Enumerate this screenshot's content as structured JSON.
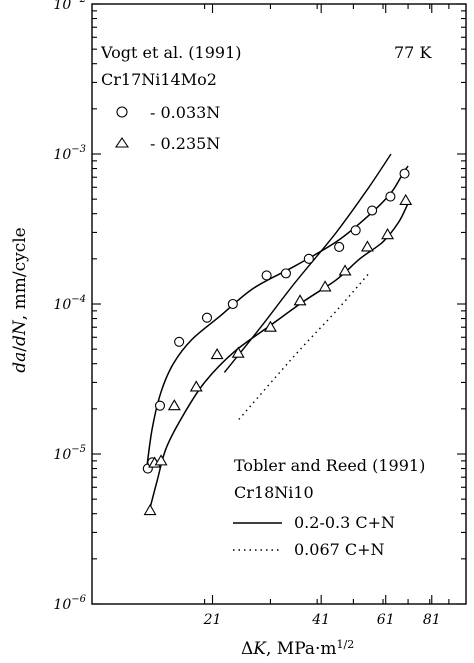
{
  "chart_data": {
    "type": "scatter",
    "title": "",
    "xlabel_parts": [
      "Δ",
      "K",
      ", MPa·m",
      "1/2"
    ],
    "ylabel_parts": [
      "da",
      "/",
      "dN",
      ", mm/cycle"
    ],
    "x_scale": "log",
    "y_scale": "log",
    "xlim": [
      10,
      100
    ],
    "ylim": [
      1e-06,
      0.01
    ],
    "grid": false,
    "x_ticks": [
      {
        "value": 21,
        "label": "21"
      },
      {
        "value": 41,
        "label": "41"
      },
      {
        "value": 61,
        "label": "61"
      },
      {
        "value": 81,
        "label": "81"
      }
    ],
    "y_ticks": [
      {
        "value": 1e-06,
        "base": "10",
        "exp": "−6"
      },
      {
        "value": 1e-05,
        "base": "10",
        "exp": "−5"
      },
      {
        "value": 0.0001,
        "base": "10",
        "exp": "−4"
      },
      {
        "value": 0.001,
        "base": "10",
        "exp": "−3"
      },
      {
        "value": 0.01,
        "base": "10",
        "exp": "−2"
      }
    ],
    "annotations": {
      "source_top": "Vogt et al. (1991)",
      "temperature": "77 K",
      "material_top": "Cr17Ni14Mo2",
      "source_bottom": "Tobler and Reed (1991)",
      "material_bottom": "Cr18Ni10"
    },
    "series": [
      {
        "name": "- 0.033N",
        "marker": "circle",
        "points": [
          [
            14.1,
            8e-06
          ],
          [
            14.5,
            8.8e-06
          ],
          [
            15.2,
            2.1e-05
          ],
          [
            17.1,
            5.6e-05
          ],
          [
            20.3,
            8.1e-05
          ],
          [
            23.8,
            0.0001
          ],
          [
            29.3,
            0.000155
          ],
          [
            33.0,
            0.00016
          ],
          [
            38.0,
            0.0002
          ],
          [
            45.8,
            0.00024
          ],
          [
            50.7,
            0.00031
          ],
          [
            56.1,
            0.00042
          ],
          [
            62.8,
            0.00052
          ],
          [
            68.5,
            0.00074
          ]
        ],
        "fit": [
          [
            14.0,
            8e-06
          ],
          [
            14.5,
            1.5e-05
          ],
          [
            15.3,
            2.6e-05
          ],
          [
            16.5,
            4e-05
          ],
          [
            18.5,
            5.8e-05
          ],
          [
            22.0,
            8.3e-05
          ],
          [
            27.0,
            0.000127
          ],
          [
            35.0,
            0.00018
          ],
          [
            45.0,
            0.00026
          ],
          [
            55.0,
            0.00039
          ],
          [
            63.0,
            0.00055
          ],
          [
            68.0,
            0.00075
          ],
          [
            70.0,
            0.00083
          ]
        ]
      },
      {
        "name": "- 0.235N",
        "marker": "triangle",
        "points": [
          [
            14.3,
            4.2e-06
          ],
          [
            14.7,
            8.7e-06
          ],
          [
            15.3,
            9e-06
          ],
          [
            16.6,
            2.1e-05
          ],
          [
            19.0,
            2.8e-05
          ],
          [
            21.6,
            4.6e-05
          ],
          [
            24.6,
            4.7e-05
          ],
          [
            30.0,
            7e-05
          ],
          [
            36.0,
            0.000105
          ],
          [
            42.0,
            0.00013
          ],
          [
            47.5,
            0.000166
          ],
          [
            54.5,
            0.00024
          ],
          [
            61.7,
            0.00029
          ],
          [
            69.0,
            0.00049
          ]
        ],
        "fit": [
          [
            14.2,
            4.1e-06
          ],
          [
            14.9,
            6.5e-06
          ],
          [
            15.8,
            1.1e-05
          ],
          [
            17.5,
            1.8e-05
          ],
          [
            20.0,
            3e-05
          ],
          [
            24.0,
            4.8e-05
          ],
          [
            30.0,
            7.2e-05
          ],
          [
            37.0,
            0.000105
          ],
          [
            45.0,
            0.000145
          ],
          [
            52.0,
            0.0002
          ],
          [
            60.0,
            0.00026
          ],
          [
            66.0,
            0.00035
          ],
          [
            70.0,
            0.00047
          ]
        ]
      },
      {
        "name": "0.2-0.3 C+N",
        "line": "solid",
        "points": [
          [
            22.6,
            3.5e-05
          ],
          [
            28.0,
            6.8e-05
          ],
          [
            35.0,
            0.00014
          ],
          [
            45.0,
            0.0003
          ],
          [
            55.0,
            0.0006
          ],
          [
            63.0,
            0.001
          ]
        ]
      },
      {
        "name": "0.067 C+N",
        "line": "dotted",
        "points": [
          [
            24.7,
            1.7e-05
          ],
          [
            35.0,
            4.6e-05
          ],
          [
            45.0,
            9e-05
          ],
          [
            55.0,
            0.00016
          ]
        ]
      }
    ]
  }
}
